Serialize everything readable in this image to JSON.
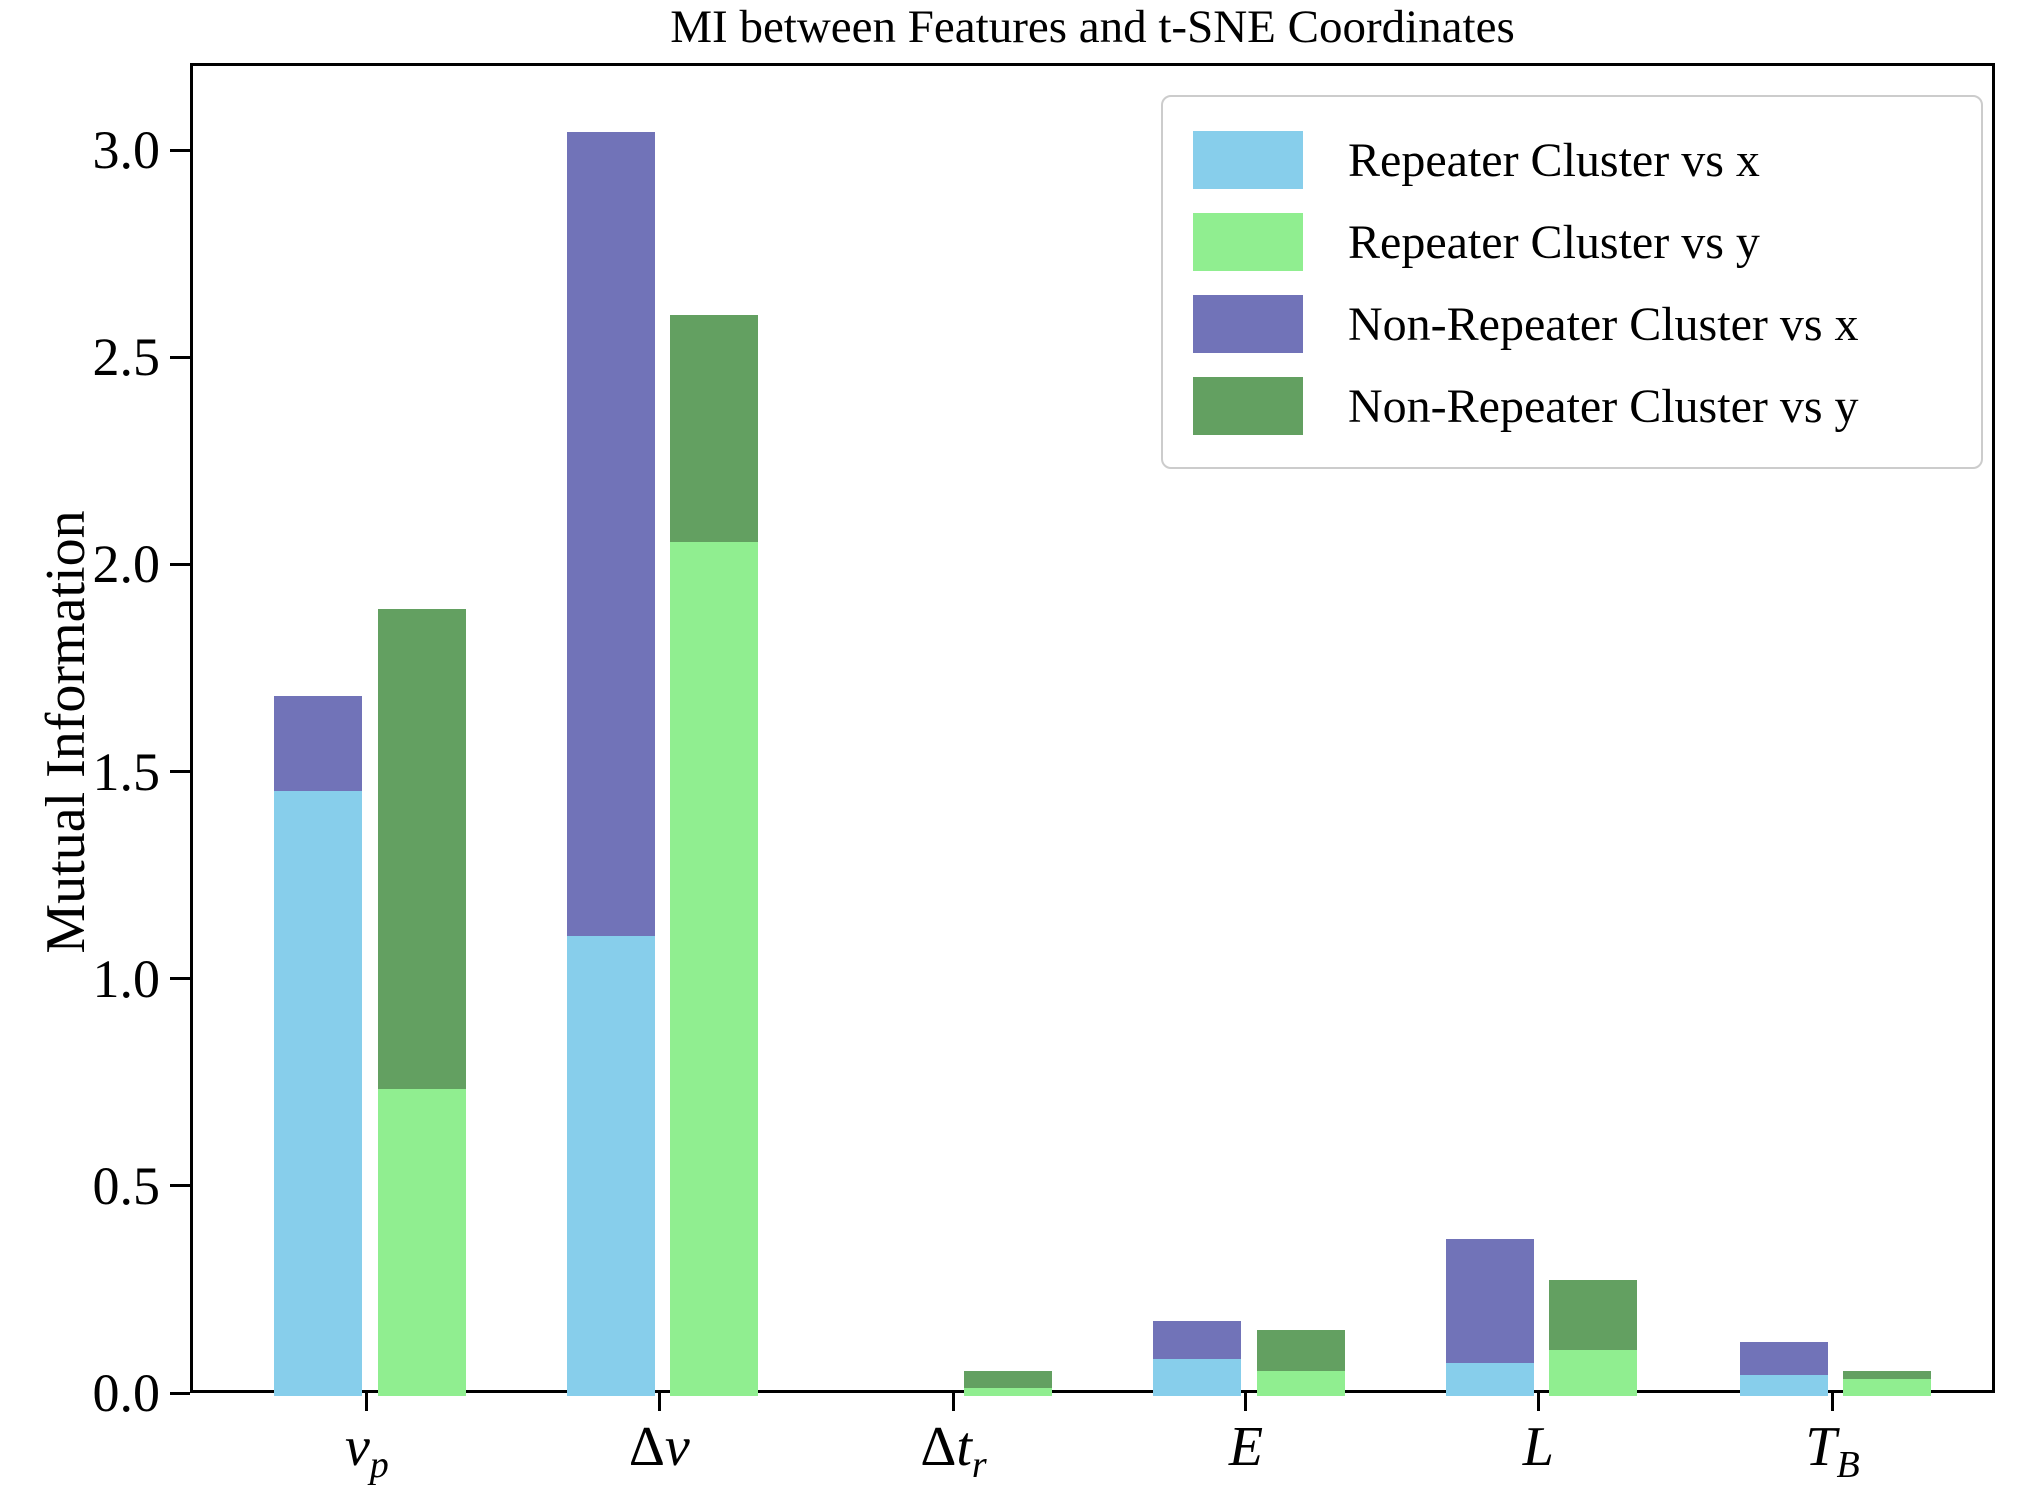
{
  "figure": {
    "title": "MI between Features and t-SNE Coordinates",
    "ylabel": "Mutual Information"
  },
  "legend": {
    "position": "upper right",
    "items": [
      {
        "label": "Repeater Cluster vs x",
        "color": "#87CEEB"
      },
      {
        "label": "Repeater Cluster vs y",
        "color": "#90EE90"
      },
      {
        "label": "Non-Repeater Cluster vs x",
        "color": "#7173B8"
      },
      {
        "label": "Non-Repeater Cluster vs y",
        "color": "#63A061"
      }
    ]
  },
  "chart_data": {
    "type": "bar",
    "title": "MI between Features and t-SNE Coordinates",
    "xlabel": "",
    "ylabel": "Mutual Information",
    "ylim": [
      0,
      3.21
    ],
    "yticks": [
      0.0,
      0.5,
      1.0,
      1.5,
      2.0,
      2.5,
      3.0
    ],
    "ytick_labels": [
      "0.0",
      "0.5",
      "1.0",
      "1.5",
      "2.0",
      "2.5",
      "3.0"
    ],
    "grid": false,
    "categories": [
      {
        "text": "νp",
        "prefix": "",
        "main": "ν",
        "sub": "p"
      },
      {
        "text": "Δν",
        "prefix": "Δ",
        "main": "ν",
        "sub": ""
      },
      {
        "text": "Δtr",
        "prefix": "Δ",
        "main": "t",
        "sub": "r"
      },
      {
        "text": "E",
        "prefix": "",
        "main": "E",
        "sub": ""
      },
      {
        "text": "L",
        "prefix": "",
        "main": "L",
        "sub": ""
      },
      {
        "text": "TB",
        "prefix": "",
        "main": "T",
        "sub": "B"
      }
    ],
    "stacking": "Each category has two bars. Left bar: 'Repeater Cluster vs x' (skyblue) from 0 up to its value, with 'Non-Repeater Cluster vs x' (purple) shown from that value up to the non-repeater total. Right bar: 'Repeater Cluster vs y' (light green) with 'Non-Repeater Cluster vs y' (dark green) above it. Non-repeater values below are the bar-top totals read off the axis.",
    "series": [
      {
        "name": "Repeater Cluster vs x",
        "color": "#87CEEB",
        "role": "bottom-left-bar",
        "values": [
          1.46,
          1.11,
          0.0,
          0.09,
          0.08,
          0.05
        ]
      },
      {
        "name": "Repeater Cluster vs y",
        "color": "#90EE90",
        "role": "bottom-right-bar",
        "values": [
          0.74,
          2.06,
          0.02,
          0.06,
          0.11,
          0.04
        ]
      },
      {
        "name": "Non-Repeater Cluster vs x",
        "color": "#7173B8",
        "role": "top-left-bar-total",
        "values": [
          1.69,
          3.05,
          0.0,
          0.18,
          0.38,
          0.13
        ]
      },
      {
        "name": "Non-Repeater Cluster vs y",
        "color": "#63A061",
        "role": "top-right-bar-total",
        "values": [
          1.9,
          2.61,
          0.06,
          0.16,
          0.28,
          0.06
        ]
      }
    ],
    "pairs": [
      {
        "bottom": 0,
        "top": 2
      },
      {
        "bottom": 1,
        "top": 3
      }
    ],
    "group_center_fracs": [
      0.098,
      0.26,
      0.423,
      0.585,
      0.747,
      0.91
    ],
    "bar_width_frac": 0.0488,
    "bar_gap_frac": 0.0085,
    "legend_position": "upper right"
  }
}
